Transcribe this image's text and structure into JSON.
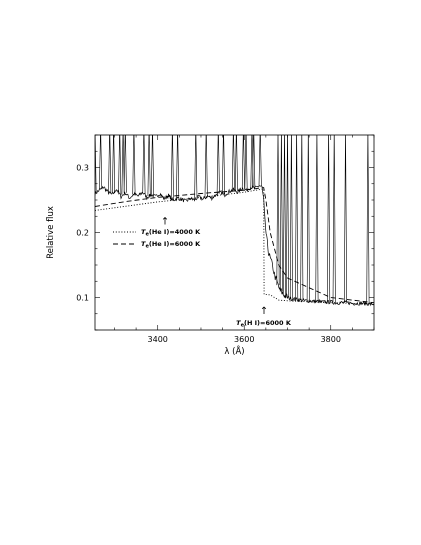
{
  "chart_data": {
    "type": "line",
    "xlabel": "λ (Å)",
    "ylabel": "Relative flux",
    "xlim": [
      3255,
      3900
    ],
    "ylim": [
      0.05,
      0.35
    ],
    "xticks": [
      3400,
      3600,
      3800
    ],
    "yticks": [
      0.1,
      0.2,
      0.3
    ],
    "legend_position": "middle-left",
    "series": [
      {
        "kind": "observed",
        "style": "solid",
        "x": [
          3255,
          3265,
          3275,
          3285,
          3295,
          3305,
          3315,
          3325,
          3335,
          3345,
          3355,
          3365,
          3375,
          3385,
          3395,
          3405,
          3415,
          3425,
          3435,
          3445,
          3455,
          3465,
          3475,
          3485,
          3495,
          3505,
          3515,
          3525,
          3535,
          3545,
          3555,
          3565,
          3575,
          3585,
          3595,
          3605,
          3615,
          3625,
          3635,
          3641,
          3645,
          3648,
          3652,
          3656,
          3660,
          3665,
          3670,
          3675,
          3680,
          3690,
          3700,
          3710,
          3720,
          3730,
          3740,
          3750,
          3760,
          3770,
          3780,
          3790,
          3800,
          3810,
          3820,
          3830,
          3840,
          3850,
          3860,
          3870,
          3880,
          3890,
          3900
        ],
        "y": [
          0.26,
          0.265,
          0.27,
          0.262,
          0.258,
          0.267,
          0.255,
          0.261,
          0.253,
          0.259,
          0.256,
          0.262,
          0.254,
          0.258,
          0.255,
          0.26,
          0.252,
          0.257,
          0.249,
          0.253,
          0.251,
          0.248,
          0.252,
          0.25,
          0.255,
          0.251,
          0.256,
          0.253,
          0.258,
          0.262,
          0.258,
          0.263,
          0.266,
          0.262,
          0.268,
          0.265,
          0.27,
          0.268,
          0.272,
          0.27,
          0.25,
          0.215,
          0.19,
          0.17,
          0.16,
          0.15,
          0.135,
          0.125,
          0.115,
          0.105,
          0.1,
          0.098,
          0.097,
          0.096,
          0.095,
          0.095,
          0.094,
          0.094,
          0.093,
          0.093,
          0.093,
          0.092,
          0.092,
          0.092,
          0.092,
          0.091,
          0.091,
          0.091,
          0.091,
          0.09,
          0.09
        ],
        "emission_lines_x": [
          3255,
          3268,
          3289,
          3298,
          3312,
          3320,
          3325,
          3345,
          3368,
          3380,
          3388,
          3434,
          3446,
          3488,
          3512,
          3540,
          3552,
          3575,
          3582,
          3598,
          3604,
          3618,
          3622,
          3637,
          3678,
          3686,
          3693,
          3700,
          3709,
          3721,
          3733,
          3748,
          3768,
          3795,
          3808,
          3834,
          3886
        ]
      },
      {
        "name": "T_e(He I)=4000 K",
        "style": "dotted",
        "x": [
          3255,
          3400,
          3500,
          3600,
          3645,
          3646,
          3660,
          3670,
          3680,
          3700,
          3800,
          3900
        ],
        "y": [
          0.234,
          0.247,
          0.254,
          0.262,
          0.267,
          0.105,
          0.104,
          0.1,
          0.096,
          0.095,
          0.092,
          0.09
        ]
      },
      {
        "name": "T_e(He I)=6000 K",
        "style": "dashed",
        "x": [
          3255,
          3330,
          3400,
          3500,
          3600,
          3645,
          3650,
          3660,
          3680,
          3700,
          3800,
          3900
        ],
        "y": [
          0.24,
          0.248,
          0.254,
          0.26,
          0.265,
          0.269,
          0.25,
          0.2,
          0.15,
          0.13,
          0.1,
          0.092
        ]
      }
    ],
    "legend": [
      {
        "style": "dotted",
        "prefix": "T",
        "sub": "e",
        "rest": "(He I)=4000 K"
      },
      {
        "style": "dashed",
        "prefix": "T",
        "sub": "e",
        "rest": "(He I)=6000 K"
      }
    ],
    "annotations": [
      {
        "id": "arrow-he",
        "text": "↑",
        "x": 3417,
        "y": 0.212
      },
      {
        "id": "arrow-h",
        "text": "↑",
        "x": 3646,
        "y": 0.075,
        "label": {
          "prefix": "T",
          "sub": "e",
          "rest": "(H I)=6000 K"
        }
      }
    ]
  }
}
